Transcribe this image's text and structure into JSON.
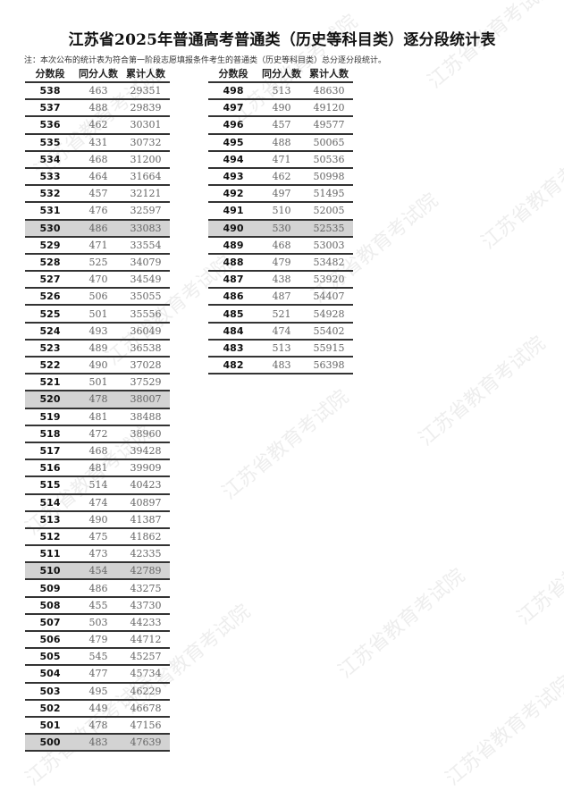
{
  "title": "江苏省2025年普通高考普通类（历史等科目类）逐分段统计表",
  "note": "注：本次公布的统计表为符合第一阶段志愿填报条件考生的普通类（历史等科目类）总分逐分段统计。",
  "watermark": "江苏省教育考试院",
  "headers": [
    "分数段",
    "同分人数",
    "累计人数"
  ],
  "highlight_color": "#d3d3d3",
  "left_table": [
    [
      "538",
      "463",
      "29351"
    ],
    [
      "537",
      "488",
      "29839"
    ],
    [
      "536",
      "462",
      "30301"
    ],
    [
      "535",
      "431",
      "30732"
    ],
    [
      "534",
      "468",
      "31200"
    ],
    [
      "533",
      "464",
      "31664"
    ],
    [
      "532",
      "457",
      "32121"
    ],
    [
      "531",
      "476",
      "32597"
    ],
    [
      "530",
      "486",
      "33083"
    ],
    [
      "529",
      "471",
      "33554"
    ],
    [
      "528",
      "525",
      "34079"
    ],
    [
      "527",
      "470",
      "34549"
    ],
    [
      "526",
      "506",
      "35055"
    ],
    [
      "525",
      "501",
      "35556"
    ],
    [
      "524",
      "493",
      "36049"
    ],
    [
      "523",
      "489",
      "36538"
    ],
    [
      "522",
      "490",
      "37028"
    ],
    [
      "521",
      "501",
      "37529"
    ],
    [
      "520",
      "478",
      "38007"
    ],
    [
      "519",
      "481",
      "38488"
    ],
    [
      "518",
      "472",
      "38960"
    ],
    [
      "517",
      "468",
      "39428"
    ],
    [
      "516",
      "481",
      "39909"
    ],
    [
      "515",
      "514",
      "40423"
    ],
    [
      "514",
      "474",
      "40897"
    ],
    [
      "513",
      "490",
      "41387"
    ],
    [
      "512",
      "475",
      "41862"
    ],
    [
      "511",
      "473",
      "42335"
    ],
    [
      "510",
      "454",
      "42789"
    ],
    [
      "509",
      "486",
      "43275"
    ],
    [
      "508",
      "455",
      "43730"
    ],
    [
      "507",
      "503",
      "44233"
    ],
    [
      "506",
      "479",
      "44712"
    ],
    [
      "505",
      "545",
      "45257"
    ],
    [
      "504",
      "477",
      "45734"
    ],
    [
      "503",
      "495",
      "46229"
    ],
    [
      "502",
      "449",
      "46678"
    ],
    [
      "501",
      "478",
      "47156"
    ],
    [
      "500",
      "483",
      "47639"
    ]
  ],
  "right_table": [
    [
      "498",
      "513",
      "48630"
    ],
    [
      "497",
      "490",
      "49120"
    ],
    [
      "496",
      "457",
      "49577"
    ],
    [
      "495",
      "488",
      "50065"
    ],
    [
      "494",
      "471",
      "50536"
    ],
    [
      "493",
      "462",
      "50998"
    ],
    [
      "492",
      "497",
      "51495"
    ],
    [
      "491",
      "510",
      "52005"
    ],
    [
      "490",
      "530",
      "52535"
    ],
    [
      "489",
      "468",
      "53003"
    ],
    [
      "488",
      "479",
      "53482"
    ],
    [
      "487",
      "438",
      "53920"
    ],
    [
      "486",
      "487",
      "54407"
    ],
    [
      "485",
      "521",
      "54928"
    ],
    [
      "484",
      "474",
      "55402"
    ],
    [
      "483",
      "513",
      "55915"
    ],
    [
      "482",
      "483",
      "56398"
    ]
  ]
}
